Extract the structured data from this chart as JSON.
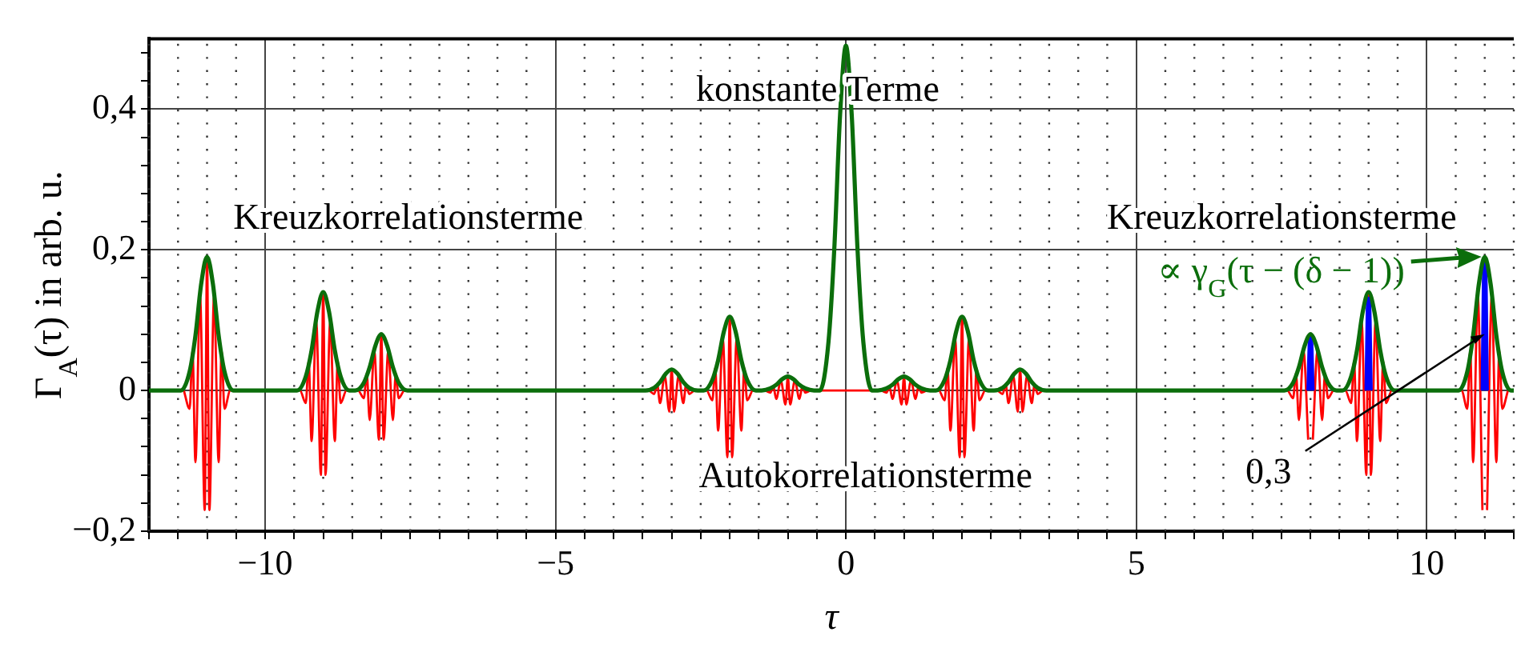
{
  "chart_data": {
    "type": "line",
    "xlabel": "τ",
    "ylabel": "Γ$_{A}$(τ) in arb. u.",
    "xlim": [
      -12,
      11.5
    ],
    "ylim": [
      -0.2,
      0.5
    ],
    "xticks": [
      {
        "value": -12,
        "label": null
      },
      {
        "value": -11.5,
        "label": null
      },
      {
        "value": -11,
        "label": null
      },
      {
        "value": -10.5,
        "label": null
      },
      {
        "value": -10,
        "label": "−10"
      },
      {
        "value": -9.5,
        "label": null
      },
      {
        "value": -9,
        "label": null
      },
      {
        "value": -8.5,
        "label": null
      },
      {
        "value": -8,
        "label": null
      },
      {
        "value": -7.5,
        "label": null
      },
      {
        "value": -7,
        "label": null
      },
      {
        "value": -6.5,
        "label": null
      },
      {
        "value": -6,
        "label": null
      },
      {
        "value": -5.5,
        "label": null
      },
      {
        "value": -5,
        "label": "−5"
      },
      {
        "value": -4.5,
        "label": null
      },
      {
        "value": -4,
        "label": null
      },
      {
        "value": -3.5,
        "label": null
      },
      {
        "value": -3,
        "label": null
      },
      {
        "value": -2.5,
        "label": null
      },
      {
        "value": -2,
        "label": null
      },
      {
        "value": -1.5,
        "label": null
      },
      {
        "value": -1,
        "label": null
      },
      {
        "value": -0.5,
        "label": null
      },
      0,
      {
        "value": 0.5,
        "label": null
      },
      {
        "value": 1,
        "label": null
      },
      {
        "value": 1.5,
        "label": null
      },
      {
        "value": 2,
        "label": null
      },
      {
        "value": 2.5,
        "label": null
      },
      {
        "value": 3,
        "label": null
      },
      {
        "value": 3.5,
        "label": null
      },
      {
        "value": 4,
        "label": null
      },
      {
        "value": 4.5,
        "label": null
      },
      5,
      {
        "value": 5.5,
        "label": null
      },
      {
        "value": 6,
        "label": null
      },
      {
        "value": 6.5,
        "label": null
      },
      {
        "value": 7,
        "label": null
      },
      {
        "value": 7.5,
        "label": null
      },
      {
        "value": 8,
        "label": null
      },
      {
        "value": 8.5,
        "label": null
      },
      {
        "value": 9,
        "label": null
      },
      {
        "value": 9.5,
        "label": null
      },
      10,
      {
        "value": 10.5,
        "label": null
      },
      {
        "value": 11,
        "label": null
      },
      {
        "value": 11.5,
        "label": null
      }
    ],
    "yticks": [
      {
        "value": -0.2,
        "label": "−0,2"
      },
      {
        "value": -0.16,
        "label": null
      },
      {
        "value": -0.12,
        "label": null
      },
      {
        "value": -0.08,
        "label": null
      },
      {
        "value": -0.04,
        "label": null
      },
      0,
      {
        "value": 0.04,
        "label": null
      },
      {
        "value": 0.08,
        "label": null
      },
      {
        "value": 0.12,
        "label": null
      },
      {
        "value": 0.16,
        "label": null
      },
      {
        "value": 0.2,
        "label": "0,2"
      },
      {
        "value": 0.24,
        "label": null
      },
      {
        "value": 0.28,
        "label": null
      },
      {
        "value": 0.32,
        "label": null
      },
      {
        "value": 0.36,
        "label": null
      },
      {
        "value": 0.4,
        "label": "0,4"
      },
      {
        "value": 0.44,
        "label": null
      },
      {
        "value": 0.48,
        "label": null
      }
    ],
    "grid": true,
    "marker": "none",
    "line_style": "solid",
    "series": [
      {
        "color": "#0b6e0b",
        "x": [
          -12,
          -11.45,
          -11.3,
          -11.2,
          -11.1,
          -11,
          -10.9,
          -10.8,
          -10.7,
          -10.55,
          -9.45,
          -9.3,
          -9.2,
          -9.1,
          -9,
          -8.9,
          -8.8,
          -8.7,
          -8.55,
          -8.45,
          -8.3,
          -8.2,
          -8.1,
          -8,
          -7.9,
          -7.8,
          -7.7,
          -7.55,
          -3.45,
          -3.3,
          -3.2,
          -3.1,
          -3,
          -2.9,
          -2.8,
          -2.7,
          -2.55,
          -2.45,
          -2.3,
          -2.2,
          -2.1,
          -2,
          -1.9,
          -1.8,
          -1.7,
          -1.55,
          -1.45,
          -1.3,
          -1.2,
          -1.1,
          -1,
          -0.9,
          -0.8,
          -0.7,
          -0.55,
          -0.45,
          -0.3,
          -0.2,
          -0.1,
          0,
          0.1,
          0.2,
          0.3,
          0.45,
          0.55,
          0.7,
          0.8,
          0.9,
          1,
          1.1,
          1.2,
          1.3,
          1.45,
          1.55,
          1.7,
          1.8,
          1.9,
          2,
          2.1,
          2.2,
          2.3,
          2.45,
          2.55,
          2.7,
          2.8,
          2.9,
          3,
          3.1,
          3.2,
          3.3,
          3.45,
          7.55,
          7.7,
          7.8,
          7.9,
          8,
          8.1,
          8.2,
          8.3,
          8.45,
          8.55,
          8.7,
          8.8,
          8.9,
          9,
          9.1,
          9.2,
          9.3,
          9.45,
          10.55,
          10.7,
          10.8,
          10.9,
          11,
          11.1,
          11.2,
          11.3,
          11.45,
          11.5
        ],
        "values": [
          0,
          0,
          0.027,
          0.078,
          0.152,
          0.19,
          0.152,
          0.078,
          0.027,
          0,
          0,
          0.02,
          0.057,
          0.112,
          0.14,
          0.112,
          0.057,
          0.02,
          0,
          0,
          0.011,
          0.033,
          0.064,
          0.08,
          0.064,
          0.033,
          0.011,
          0,
          0,
          0.004,
          0.012,
          0.024,
          0.03,
          0.024,
          0.012,
          0.004,
          0,
          0,
          0.015,
          0.043,
          0.084,
          0.105,
          0.084,
          0.043,
          0.015,
          0,
          0,
          0.003,
          0.008,
          0.016,
          0.02,
          0.016,
          0.008,
          0.003,
          0,
          0,
          0.069,
          0.201,
          0.392,
          0.49,
          0.392,
          0.201,
          0.069,
          0,
          0,
          0.003,
          0.008,
          0.016,
          0.02,
          0.016,
          0.008,
          0.003,
          0,
          0,
          0.015,
          0.043,
          0.084,
          0.105,
          0.084,
          0.043,
          0.015,
          0,
          0,
          0.004,
          0.012,
          0.024,
          0.03,
          0.024,
          0.012,
          0.004,
          0,
          0,
          0.011,
          0.033,
          0.064,
          0.08,
          0.064,
          0.033,
          0.011,
          0,
          0,
          0.02,
          0.057,
          0.112,
          0.14,
          0.112,
          0.057,
          0.02,
          0,
          0,
          0.027,
          0.078,
          0.152,
          0.19,
          0.152,
          0.078,
          0.027,
          0,
          0
        ]
      },
      {
        "color": "#0000ff",
        "x": [
          7.97,
          8,
          8.03,
          8.5,
          8.97,
          9,
          9.03,
          10,
          10.97,
          11,
          11.03
        ],
        "values": [
          0,
          0.075,
          0,
          null,
          0,
          0.13,
          0,
          null,
          0,
          0.18,
          0
        ]
      },
      {
        "color": "#ff0000",
        "x": [
          -11.4,
          -11.3,
          -11.25,
          -11.2,
          -11.12,
          -11.04,
          -11,
          -10.96,
          -10.88,
          -10.8,
          -10.75,
          -10.7,
          -10.6,
          -9.4,
          -9.3,
          -9.25,
          -9.2,
          -9.12,
          -9.04,
          -9,
          -8.96,
          -8.88,
          -8.8,
          -8.75,
          -8.7,
          -8.6,
          -8.4,
          -8.3,
          -8.25,
          -8.2,
          -8.12,
          -8.04,
          -8,
          -7.96,
          -7.88,
          -7.8,
          -7.75,
          -7.7,
          -7.6,
          -3.4,
          -3.3,
          -3.25,
          -3.2,
          -3.12,
          -3.04,
          -3,
          -2.96,
          -2.88,
          -2.8,
          -2.75,
          -2.7,
          -2.6,
          -2.4,
          -2.3,
          -2.25,
          -2.2,
          -2.12,
          -2.04,
          -2,
          -1.96,
          -1.88,
          -1.8,
          -1.75,
          -1.7,
          -1.6,
          -1.4,
          -1.3,
          -1.25,
          -1.2,
          -1.12,
          -1.04,
          -1,
          -0.96,
          -0.88,
          -0.8,
          -0.75,
          -0.7,
          -0.6,
          0.6,
          0.7,
          0.75,
          0.8,
          0.88,
          0.96,
          1,
          1.04,
          1.12,
          1.2,
          1.25,
          1.3,
          1.4,
          1.6,
          1.7,
          1.75,
          1.8,
          1.88,
          1.96,
          2,
          2.04,
          2.12,
          2.2,
          2.25,
          2.3,
          2.4,
          2.6,
          2.7,
          2.75,
          2.8,
          2.88,
          2.96,
          3,
          3.04,
          3.12,
          3.2,
          3.25,
          3.3,
          3.4,
          7.6,
          7.7,
          7.75,
          7.8,
          7.88,
          7.96,
          8,
          8.04,
          8.12,
          8.2,
          8.25,
          8.3,
          8.4,
          8.6,
          8.7,
          8.75,
          8.8,
          8.88,
          8.96,
          9,
          9.04,
          9.12,
          9.2,
          9.25,
          9.3,
          9.4,
          10.6,
          10.7,
          10.75,
          10.8,
          10.88,
          10.96,
          11,
          11.04,
          11.12,
          11.2,
          11.25,
          11.3,
          11.4
        ],
        "values": [
          0,
          -0.026,
          0.057,
          -0.102,
          0.133,
          -0.17,
          0.19,
          -0.17,
          0.133,
          -0.102,
          0.057,
          -0.026,
          0,
          0,
          -0.018,
          0.042,
          -0.072,
          0.098,
          -0.12,
          0.14,
          -0.12,
          0.098,
          -0.072,
          0.042,
          -0.018,
          0,
          0,
          -0.011,
          0.024,
          -0.042,
          0.056,
          -0.07,
          0.08,
          -0.07,
          0.056,
          -0.042,
          0.024,
          -0.011,
          0,
          0,
          -0.005,
          0.009,
          -0.018,
          0.021,
          -0.03,
          0.03,
          -0.03,
          0.021,
          -0.018,
          0.009,
          -0.005,
          0,
          0,
          -0.014,
          0.032,
          -0.057,
          0.074,
          -0.095,
          0.105,
          -0.095,
          0.074,
          -0.057,
          0.032,
          -0.014,
          0,
          0,
          -0.003,
          0.006,
          -0.012,
          0.014,
          -0.02,
          0.02,
          -0.02,
          0.014,
          -0.012,
          0.006,
          -0.003,
          0,
          0,
          -0.003,
          0.006,
          -0.012,
          0.014,
          -0.02,
          0.02,
          -0.02,
          0.014,
          -0.012,
          0.006,
          -0.003,
          0,
          0,
          -0.014,
          0.032,
          -0.057,
          0.074,
          -0.095,
          0.105,
          -0.095,
          0.074,
          -0.057,
          0.032,
          -0.014,
          0,
          0,
          -0.005,
          0.009,
          -0.018,
          0.021,
          -0.03,
          0.03,
          -0.03,
          0.021,
          -0.018,
          0.009,
          -0.005,
          0,
          0,
          -0.011,
          0.024,
          -0.042,
          0.056,
          -0.07,
          null,
          -0.07,
          0.056,
          -0.042,
          0.024,
          -0.011,
          0,
          0,
          -0.018,
          0.042,
          -0.072,
          0.098,
          -0.12,
          0.14,
          -0.12,
          0.098,
          -0.072,
          0.042,
          -0.018,
          0,
          0,
          -0.026,
          0.057,
          -0.102,
          0.133,
          -0.17,
          null,
          -0.17,
          0.133,
          -0.102,
          0.057,
          -0.026,
          0
        ]
      }
    ],
    "annotations": [
      "konstante Terme",
      "Kreuzkorrelationsterme",
      "Kreuzkorrelationsterme",
      "Autokorrelationsterme",
      {
        "text": "∝ γ$_{G}$(τ − (δ − 1))",
        "x": 11,
        "y": 0.19
      },
      {
        "text": "0,3",
        "x": 11,
        "y": 0.08
      }
    ]
  }
}
